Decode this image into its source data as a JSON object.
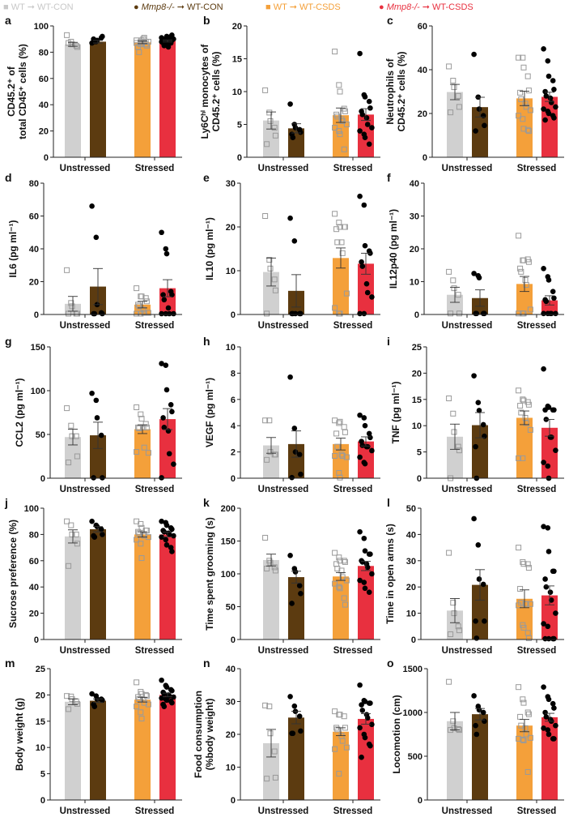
{
  "legend": [
    {
      "marker": "■",
      "genotype": "WT",
      "arrow": "➞",
      "group": "WT-CON",
      "color": "#c8c8c8"
    },
    {
      "marker": "●",
      "genotype": "Mmp8-/-",
      "arrow": "➞",
      "group": "WT-CON",
      "color": "#5c3b10"
    },
    {
      "marker": "■",
      "genotype": "WT",
      "arrow": "➞",
      "group": "WT-CSDS",
      "color": "#f4a03a"
    },
    {
      "marker": "●",
      "genotype": "Mmp8-/-",
      "arrow": "➞",
      "group": "WT-CSDS",
      "color": "#e8303f"
    }
  ],
  "colors": {
    "wt_con": "#d0d0d0",
    "mmp8_con": "#5c3b10",
    "wt_csds": "#f4a03a",
    "mmp8_csds": "#e8303f"
  },
  "chart_data": [
    {
      "letter": "a",
      "type": "bar",
      "ylabel": [
        "CD45.2⁺ of",
        "total CD45⁺ cells (%)"
      ],
      "categories": [
        "Unstressed",
        "Stressed"
      ],
      "ylim": [
        0,
        100
      ],
      "yticks": [
        0,
        20,
        40,
        60,
        80,
        100
      ],
      "means": [
        86,
        88,
        87.5,
        88.5
      ],
      "sem": [
        1.5,
        1,
        1,
        0.7
      ],
      "points": [
        [
          93,
          88,
          86,
          85,
          84,
          87
        ],
        [
          87,
          88,
          89,
          91,
          92,
          90,
          88
        ],
        [
          89,
          88,
          87,
          86,
          85,
          84,
          80,
          90,
          91,
          88,
          87,
          86,
          89,
          88
        ],
        [
          88,
          90,
          91,
          92,
          93,
          87,
          85,
          86,
          89,
          90,
          91,
          88,
          92,
          87,
          89,
          90,
          88,
          84
        ]
      ]
    },
    {
      "letter": "b",
      "type": "bar",
      "ylabel": [
        "Ly6Cʰⁱ monocytes of",
        "CD45.2⁺ cells (%)"
      ],
      "categories": [
        "Unstressed",
        "Stressed"
      ],
      "ylim": [
        0,
        20
      ],
      "yticks": [
        0,
        5,
        10,
        15,
        20
      ],
      "means": [
        5.6,
        4.4,
        6.4,
        6.5
      ],
      "sem": [
        1.3,
        0.7,
        1.1,
        0.9
      ],
      "points": [
        [
          10.2,
          6.8,
          5.5,
          4.5,
          3.3,
          2.0
        ],
        [
          8.1,
          5.0,
          4.5,
          4.2,
          3.8,
          3.5,
          3.0
        ],
        [
          16.1,
          11.0,
          10.0,
          7.4,
          7.0,
          6.5,
          6.2,
          5.8,
          5.5,
          5.0,
          4.5,
          4.0,
          3.5,
          1.2
        ],
        [
          15.8,
          9.5,
          9.2,
          8.5,
          7.5,
          7.0,
          6.5,
          6.0,
          5.0,
          4.5,
          4.0,
          3.5,
          3.0,
          2.0
        ]
      ]
    },
    {
      "letter": "c",
      "type": "bar",
      "ylabel": [
        "Neutrophils of",
        "CD45.2⁺ cells (%)"
      ],
      "categories": [
        "Unstressed",
        "Stressed"
      ],
      "ylim": [
        0,
        60
      ],
      "yticks": [
        0,
        20,
        40,
        60
      ],
      "means": [
        29.8,
        22.9,
        26.9,
        27.6
      ],
      "sem": [
        3.5,
        4.5,
        3.3,
        2.1
      ],
      "points": [
        [
          41.5,
          35,
          32,
          28,
          23,
          20.5
        ],
        [
          47,
          27.5,
          22,
          19,
          14.5,
          12
        ],
        [
          45.5,
          45.5,
          41,
          37,
          30.5,
          29.5,
          26.5,
          24.5,
          23,
          21.5,
          19,
          17.5,
          13,
          12.5,
          12
        ],
        [
          49.5,
          44,
          37,
          35,
          31,
          30,
          28,
          27,
          25,
          23,
          22,
          21,
          20,
          19,
          18,
          17
        ]
      ]
    },
    {
      "letter": "d",
      "type": "bar",
      "ylabel": [
        "IL6 (pg ml⁻¹)"
      ],
      "categories": [
        "Unstressed",
        "Stressed"
      ],
      "ylim": [
        0,
        80
      ],
      "yticks": [
        0,
        20,
        40,
        60,
        80
      ],
      "means": [
        6.5,
        17,
        6,
        16
      ],
      "sem": [
        4.5,
        11,
        2,
        5.2
      ],
      "points": [
        [
          27,
          7,
          5,
          0.5,
          0.5,
          0.5
        ],
        [
          66,
          47,
          6,
          1,
          0.5,
          0.5,
          0.5
        ],
        [
          16,
          11,
          11,
          10,
          8,
          6,
          5,
          3,
          1,
          1,
          0.5,
          0.5
        ],
        [
          50,
          40,
          37,
          14,
          12,
          12,
          9,
          4,
          0.5,
          0.5,
          0.5,
          0.5
        ]
      ]
    },
    {
      "letter": "e",
      "type": "bar",
      "ylabel": [
        "IL10 (pg ml⁻¹)"
      ],
      "categories": [
        "Unstressed",
        "Stressed"
      ],
      "ylim": [
        0,
        30
      ],
      "yticks": [
        0,
        10,
        20,
        30
      ],
      "means": [
        9.7,
        5.4,
        12.9,
        11.6
      ],
      "sem": [
        3.2,
        3.7,
        2.3,
        2.4
      ],
      "points": [
        [
          22.5,
          12.5,
          10.5,
          8,
          5.5,
          0.2
        ],
        [
          22,
          16.8,
          0.2,
          0.2,
          0.2,
          0.2,
          0.2
        ],
        [
          23,
          21,
          20,
          20,
          20,
          19.5,
          16.5,
          16.5,
          14,
          4.8,
          1.5,
          0.2,
          0.2
        ],
        [
          27,
          25,
          15.7,
          14.5,
          14,
          12,
          11,
          7,
          5,
          4,
          0.2,
          0.2
        ]
      ]
    },
    {
      "letter": "f",
      "type": "bar",
      "ylabel": [
        "IL12p40 (pg ml⁻¹)"
      ],
      "categories": [
        "Unstressed",
        "Stressed"
      ],
      "ylim": [
        0,
        40
      ],
      "yticks": [
        0,
        10,
        20,
        30,
        40
      ],
      "means": [
        6,
        5,
        9.3,
        4.3
      ],
      "sem": [
        2.3,
        2.5,
        2.3,
        1.4
      ],
      "points": [
        [
          13,
          10.4,
          8,
          6,
          0.3,
          0.3
        ],
        [
          12.5,
          11.8,
          11.2,
          0.3,
          0.3,
          0.3,
          0.3
        ],
        [
          24,
          16.5,
          16.5,
          16.8,
          16,
          14,
          13,
          10.5,
          9,
          1.5,
          0.3,
          0.3,
          0.3
        ],
        [
          14,
          11.5,
          10.5,
          7,
          5,
          4.5,
          4,
          0.3,
          0.3,
          0.3,
          0.3,
          0.3
        ]
      ]
    },
    {
      "letter": "g",
      "type": "bar",
      "ylabel": [
        "CCL2 (pg ml⁻¹)"
      ],
      "categories": [
        "Unstressed",
        "Stressed"
      ],
      "ylim": [
        0,
        150
      ],
      "yticks": [
        0,
        50,
        100,
        150
      ],
      "means": [
        47,
        49,
        56,
        67.5
      ],
      "sem": [
        9,
        15,
        5,
        12
      ],
      "points": [
        [
          80,
          60,
          48,
          48,
          25,
          18
        ],
        [
          97,
          89,
          69,
          49,
          0.5,
          0.5
        ],
        [
          81,
          73,
          68,
          62,
          58,
          58,
          57,
          58,
          35,
          29,
          30
        ],
        [
          131,
          129,
          101,
          84,
          76,
          69,
          58,
          54,
          28,
          16,
          0.5
        ]
      ]
    },
    {
      "letter": "h",
      "type": "bar",
      "ylabel": [
        "VEGF (pg ml⁻¹)"
      ],
      "categories": [
        "Unstressed",
        "Stressed"
      ],
      "ylim": [
        0,
        10
      ],
      "yticks": [
        0,
        2,
        4,
        6,
        8,
        10
      ],
      "means": [
        2.5,
        2.6,
        2.6,
        2.8
      ],
      "sem": [
        0.6,
        1.0,
        0.45,
        0.35
      ],
      "points": [
        [
          4.4,
          4.4,
          2.0,
          1.8,
          1.8,
          1.4
        ],
        [
          7.7,
          3.8,
          2.0,
          1.8,
          0.3,
          0.05
        ],
        [
          4.4,
          4.2,
          4.3,
          3.9,
          3.5,
          3.4,
          2.4,
          1.8,
          1.7,
          1.6,
          1.7,
          0.4,
          0.05
        ],
        [
          4.8,
          4.6,
          4.0,
          3.4,
          3.1,
          2.8,
          2.5,
          2.4,
          2.4,
          2.1,
          1.6,
          1.2,
          1.1
        ]
      ]
    },
    {
      "letter": "i",
      "type": "bar",
      "ylabel": [
        "TNF (pg ml⁻¹)"
      ],
      "categories": [
        "Unstressed",
        "Stressed"
      ],
      "ylim": [
        0,
        25
      ],
      "yticks": [
        0,
        5,
        10,
        15,
        20,
        25
      ],
      "means": [
        7.9,
        10.1,
        11.5,
        9.6
      ],
      "sem": [
        2.4,
        2.4,
        1.3,
        1.6
      ],
      "points": [
        [
          15.2,
          12.3,
          8.8,
          6,
          5.3,
          0
        ],
        [
          19.5,
          14.4,
          12.9,
          10.2,
          8,
          6,
          0
        ],
        [
          16.7,
          15,
          14.8,
          14.5,
          14,
          13.8,
          12.5,
          11.5,
          10.5,
          9.2,
          3.8,
          3.8
        ],
        [
          20.8,
          13.7,
          13.5,
          13,
          13,
          13,
          11.2,
          7.8,
          7.8,
          5.3,
          3,
          2.3,
          0
        ]
      ]
    },
    {
      "letter": "j",
      "type": "bar",
      "ylabel": [
        "Sucrose preference (%)"
      ],
      "categories": [
        "Unstressed",
        "Stressed"
      ],
      "ylim": [
        0,
        100
      ],
      "yticks": [
        0,
        20,
        40,
        60,
        80,
        100
      ],
      "means": [
        78.5,
        84,
        80,
        80
      ],
      "sem": [
        5,
        2,
        2,
        1.8
      ],
      "points": [
        [
          90,
          87,
          80,
          80,
          73,
          56
        ],
        [
          90,
          87,
          86,
          84,
          80,
          79,
          78
        ],
        [
          90,
          88,
          85,
          83,
          83,
          82,
          81,
          80,
          79,
          78,
          76,
          73,
          62
        ],
        [
          90,
          89,
          87,
          85,
          84,
          83,
          82,
          81,
          80,
          79,
          78,
          76,
          72,
          70,
          67
        ]
      ]
    },
    {
      "letter": "k",
      "type": "bar",
      "ylabel": [
        "Time spent grooming (s)"
      ],
      "categories": [
        "Unstressed",
        "Stressed"
      ],
      "ylim": [
        0,
        200
      ],
      "yticks": [
        0,
        50,
        100,
        150,
        200
      ],
      "means": [
        121,
        95,
        96,
        112
      ],
      "sem": [
        9,
        9,
        6,
        7
      ],
      "points": [
        [
          155,
          120,
          117,
          110,
          105,
          108
        ],
        [
          128,
          108,
          103,
          82,
          70,
          55
        ],
        [
          132,
          125,
          120,
          120,
          118,
          115,
          108,
          105,
          95,
          90,
          85,
          80,
          78,
          63,
          53
        ],
        [
          164,
          154,
          135,
          130,
          130,
          120,
          118,
          115,
          110,
          100,
          90,
          87,
          78,
          72
        ]
      ]
    },
    {
      "letter": "l",
      "type": "bar",
      "ylabel": [
        "Time in open arms (s)"
      ],
      "categories": [
        "Unstressed",
        "Stressed"
      ],
      "ylim": [
        0,
        50
      ],
      "yticks": [
        0,
        10,
        20,
        30,
        40,
        50
      ],
      "means": [
        11,
        20.8,
        15.5,
        16.8
      ],
      "sem": [
        4.6,
        5.8,
        3.4,
        3.6
      ],
      "points": [
        [
          33,
          14,
          10,
          5,
          3.5,
          2
        ],
        [
          46,
          36,
          23,
          21,
          7,
          7,
          0.5
        ],
        [
          35,
          29.5,
          28.8,
          28.7,
          27.3,
          19.3,
          14,
          13.5,
          13.5,
          13.5,
          13,
          5.5,
          4.5,
          2.5,
          0.5
        ],
        [
          43,
          42.5,
          33.5,
          26,
          26,
          23,
          20,
          18,
          15,
          10,
          6,
          5,
          0.3,
          0.3,
          0.3,
          0.3
        ]
      ]
    },
    {
      "letter": "m",
      "type": "bar",
      "ylabel": [
        "Body weight (g)"
      ],
      "categories": [
        "Unstressed",
        "Stressed"
      ],
      "ylim": [
        0,
        25
      ],
      "yticks": [
        0,
        5,
        10,
        15,
        20,
        25
      ],
      "means": [
        18.7,
        18.9,
        19.1,
        20
      ],
      "sem": [
        0.55,
        0.35,
        0.45,
        0.35
      ],
      "points": [
        [
          19.8,
          19.7,
          19.2,
          18.8,
          18.3,
          17.3
        ],
        [
          20.2,
          19.8,
          19.2,
          19.2,
          19.0,
          18.2,
          17.8
        ],
        [
          22.4,
          20.6,
          20.2,
          20.0,
          19.8,
          19.6,
          19.2,
          19.1,
          18.5,
          18.2,
          17.8,
          16.7,
          15.5
        ],
        [
          22.8,
          21.8,
          21.5,
          21.0,
          20.8,
          20.5,
          20.2,
          20.0,
          19.8,
          19.6,
          19.4,
          19.2,
          19.0,
          18.8,
          18.5,
          18.2,
          17.8
        ]
      ]
    },
    {
      "letter": "n",
      "type": "bar",
      "ylabel": [
        "Food consumption",
        "(%body weight)"
      ],
      "categories": [
        "Unstressed",
        "Stressed"
      ],
      "ylim": [
        0,
        40
      ],
      "yticks": [
        0,
        10,
        20,
        30,
        40
      ],
      "means": [
        17.3,
        25.1,
        20.8,
        24.7
      ],
      "sem": [
        4.2,
        1.9,
        1.2,
        1.6
      ],
      "points": [
        [
          28.8,
          28.5,
          20.3,
          14.8,
          6.8,
          6.5
        ],
        [
          31.5,
          28.6,
          27,
          25.5,
          21,
          20.3,
          20.3
        ],
        [
          27,
          26,
          26,
          25.5,
          22,
          22,
          21.5,
          19.5,
          18,
          16,
          15.5,
          8
        ],
        [
          35,
          30.3,
          30,
          29.5,
          29.5,
          29,
          27.3,
          26,
          25,
          23,
          22,
          20,
          19,
          17,
          16.5,
          13
        ]
      ]
    },
    {
      "letter": "o",
      "type": "bar",
      "ylabel": [
        "Locomotion (cm)"
      ],
      "categories": [
        "Unstressed",
        "Stressed"
      ],
      "ylim": [
        0,
        1500
      ],
      "yticks": [
        0,
        500,
        1000,
        1500
      ],
      "means": [
        900,
        980,
        850,
        945
      ],
      "sem": [
        100,
        65,
        70,
        45
      ],
      "points": [
        [
          1350,
          900,
          820,
          810,
          800,
          800
        ],
        [
          1190,
          1070,
          1030,
          1000,
          900,
          850,
          750
        ],
        [
          1290,
          1150,
          1110,
          1000,
          980,
          950,
          850,
          820,
          750,
          710,
          700,
          690,
          680,
          320
        ],
        [
          1290,
          1180,
          1150,
          1100,
          1050,
          1000,
          950,
          920,
          900,
          850,
          820,
          800,
          750,
          700,
          700
        ]
      ]
    }
  ]
}
